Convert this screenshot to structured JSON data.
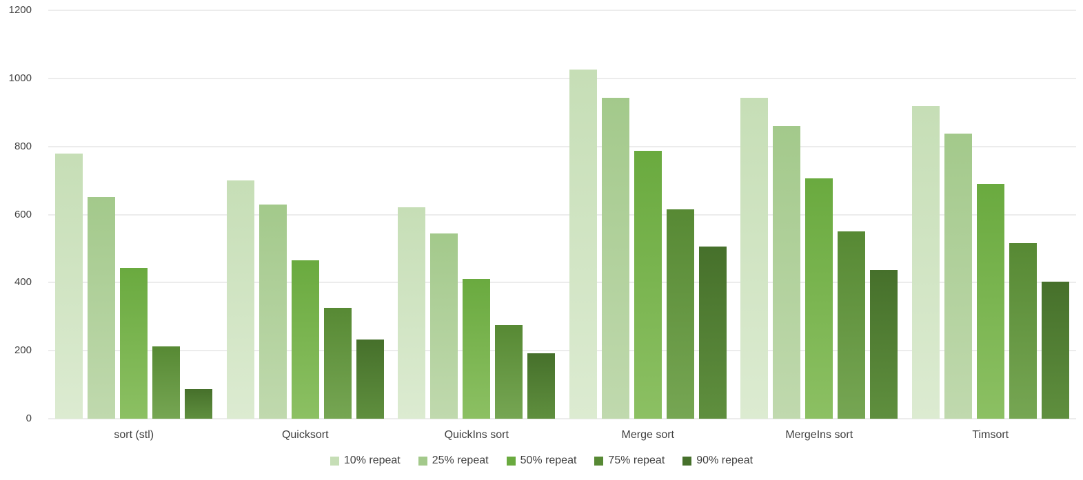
{
  "chart_data": {
    "type": "bar",
    "title": "",
    "xlabel": "",
    "ylabel": "",
    "categories": [
      "sort (stl)",
      "Quicksort",
      "QuickIns sort",
      "Merge sort",
      "MergeIns sort",
      "Timsort"
    ],
    "series": [
      {
        "name": "10% repeat",
        "color_top": "#c6deb6",
        "color_bottom": "#dcebd1",
        "values": [
          780,
          700,
          621,
          1026,
          944,
          918
        ]
      },
      {
        "name": "25% repeat",
        "color_top": "#a3c98b",
        "color_bottom": "#c0d9ae",
        "values": [
          652,
          630,
          544,
          944,
          860,
          837
        ]
      },
      {
        "name": "50% repeat",
        "color_top": "#6aaa3f",
        "color_bottom": "#8cc063",
        "values": [
          443,
          465,
          410,
          787,
          707,
          690
        ]
      },
      {
        "name": "75% repeat",
        "color_top": "#578934",
        "color_bottom": "#76a653",
        "values": [
          212,
          326,
          275,
          616,
          551,
          516
        ]
      },
      {
        "name": "90% repeat",
        "color_top": "#46702b",
        "color_bottom": "#5f8f3e",
        "values": [
          88,
          233,
          192,
          506,
          438,
          403
        ]
      }
    ],
    "ylim": [
      0,
      1200
    ],
    "yticks": [
      0,
      200,
      400,
      600,
      800,
      1000,
      1200
    ],
    "grid": true,
    "legend_position": "bottom",
    "gridline_color": "#d9d9d9",
    "text_color": "#404040",
    "background": "#ffffff"
  }
}
